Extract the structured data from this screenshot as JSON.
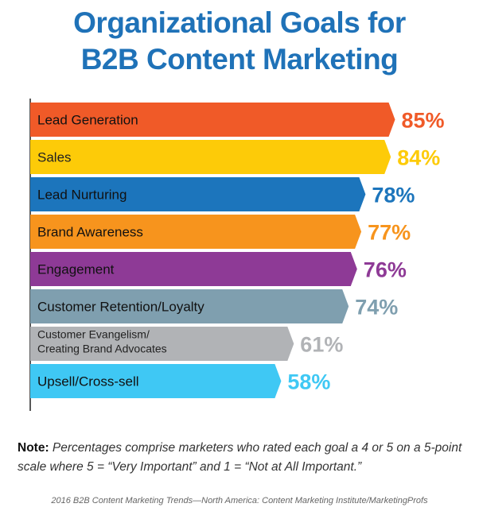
{
  "title_line1": "Organizational Goals for",
  "title_line2": "B2B Content Marketing",
  "note_label": "Note:",
  "note_text": "Percentages comprise marketers who rated each goal a 4 or 5 on a 5-point scale where 5 = “Very Important” and 1 = “Not at All Important.”",
  "source": "2016 B2B Content Marketing Trends—North America: Content Marketing Institute/MarketingProfs",
  "chart_data": {
    "type": "bar",
    "orientation": "horizontal",
    "title": "Organizational Goals for B2B Content Marketing",
    "xlim": [
      0,
      100
    ],
    "categories": [
      "Lead Generation",
      "Sales",
      "Lead Nurturing",
      "Brand Awareness",
      "Engagement",
      "Customer Retention/Loyalty",
      "Customer Evangelism/ Creating Brand Advocates",
      "Upsell/Cross-sell"
    ],
    "values": [
      85,
      84,
      78,
      77,
      76,
      74,
      61,
      58
    ],
    "value_labels": [
      "85%",
      "84%",
      "78%",
      "77%",
      "76%",
      "74%",
      "61%",
      "58%"
    ],
    "colors": [
      "#f05a28",
      "#fdcb08",
      "#1c75bc",
      "#f7941d",
      "#8e3a96",
      "#7f9faf",
      "#b1b3b6",
      "#3fc8f4"
    ],
    "grid": false,
    "legend": "none"
  }
}
